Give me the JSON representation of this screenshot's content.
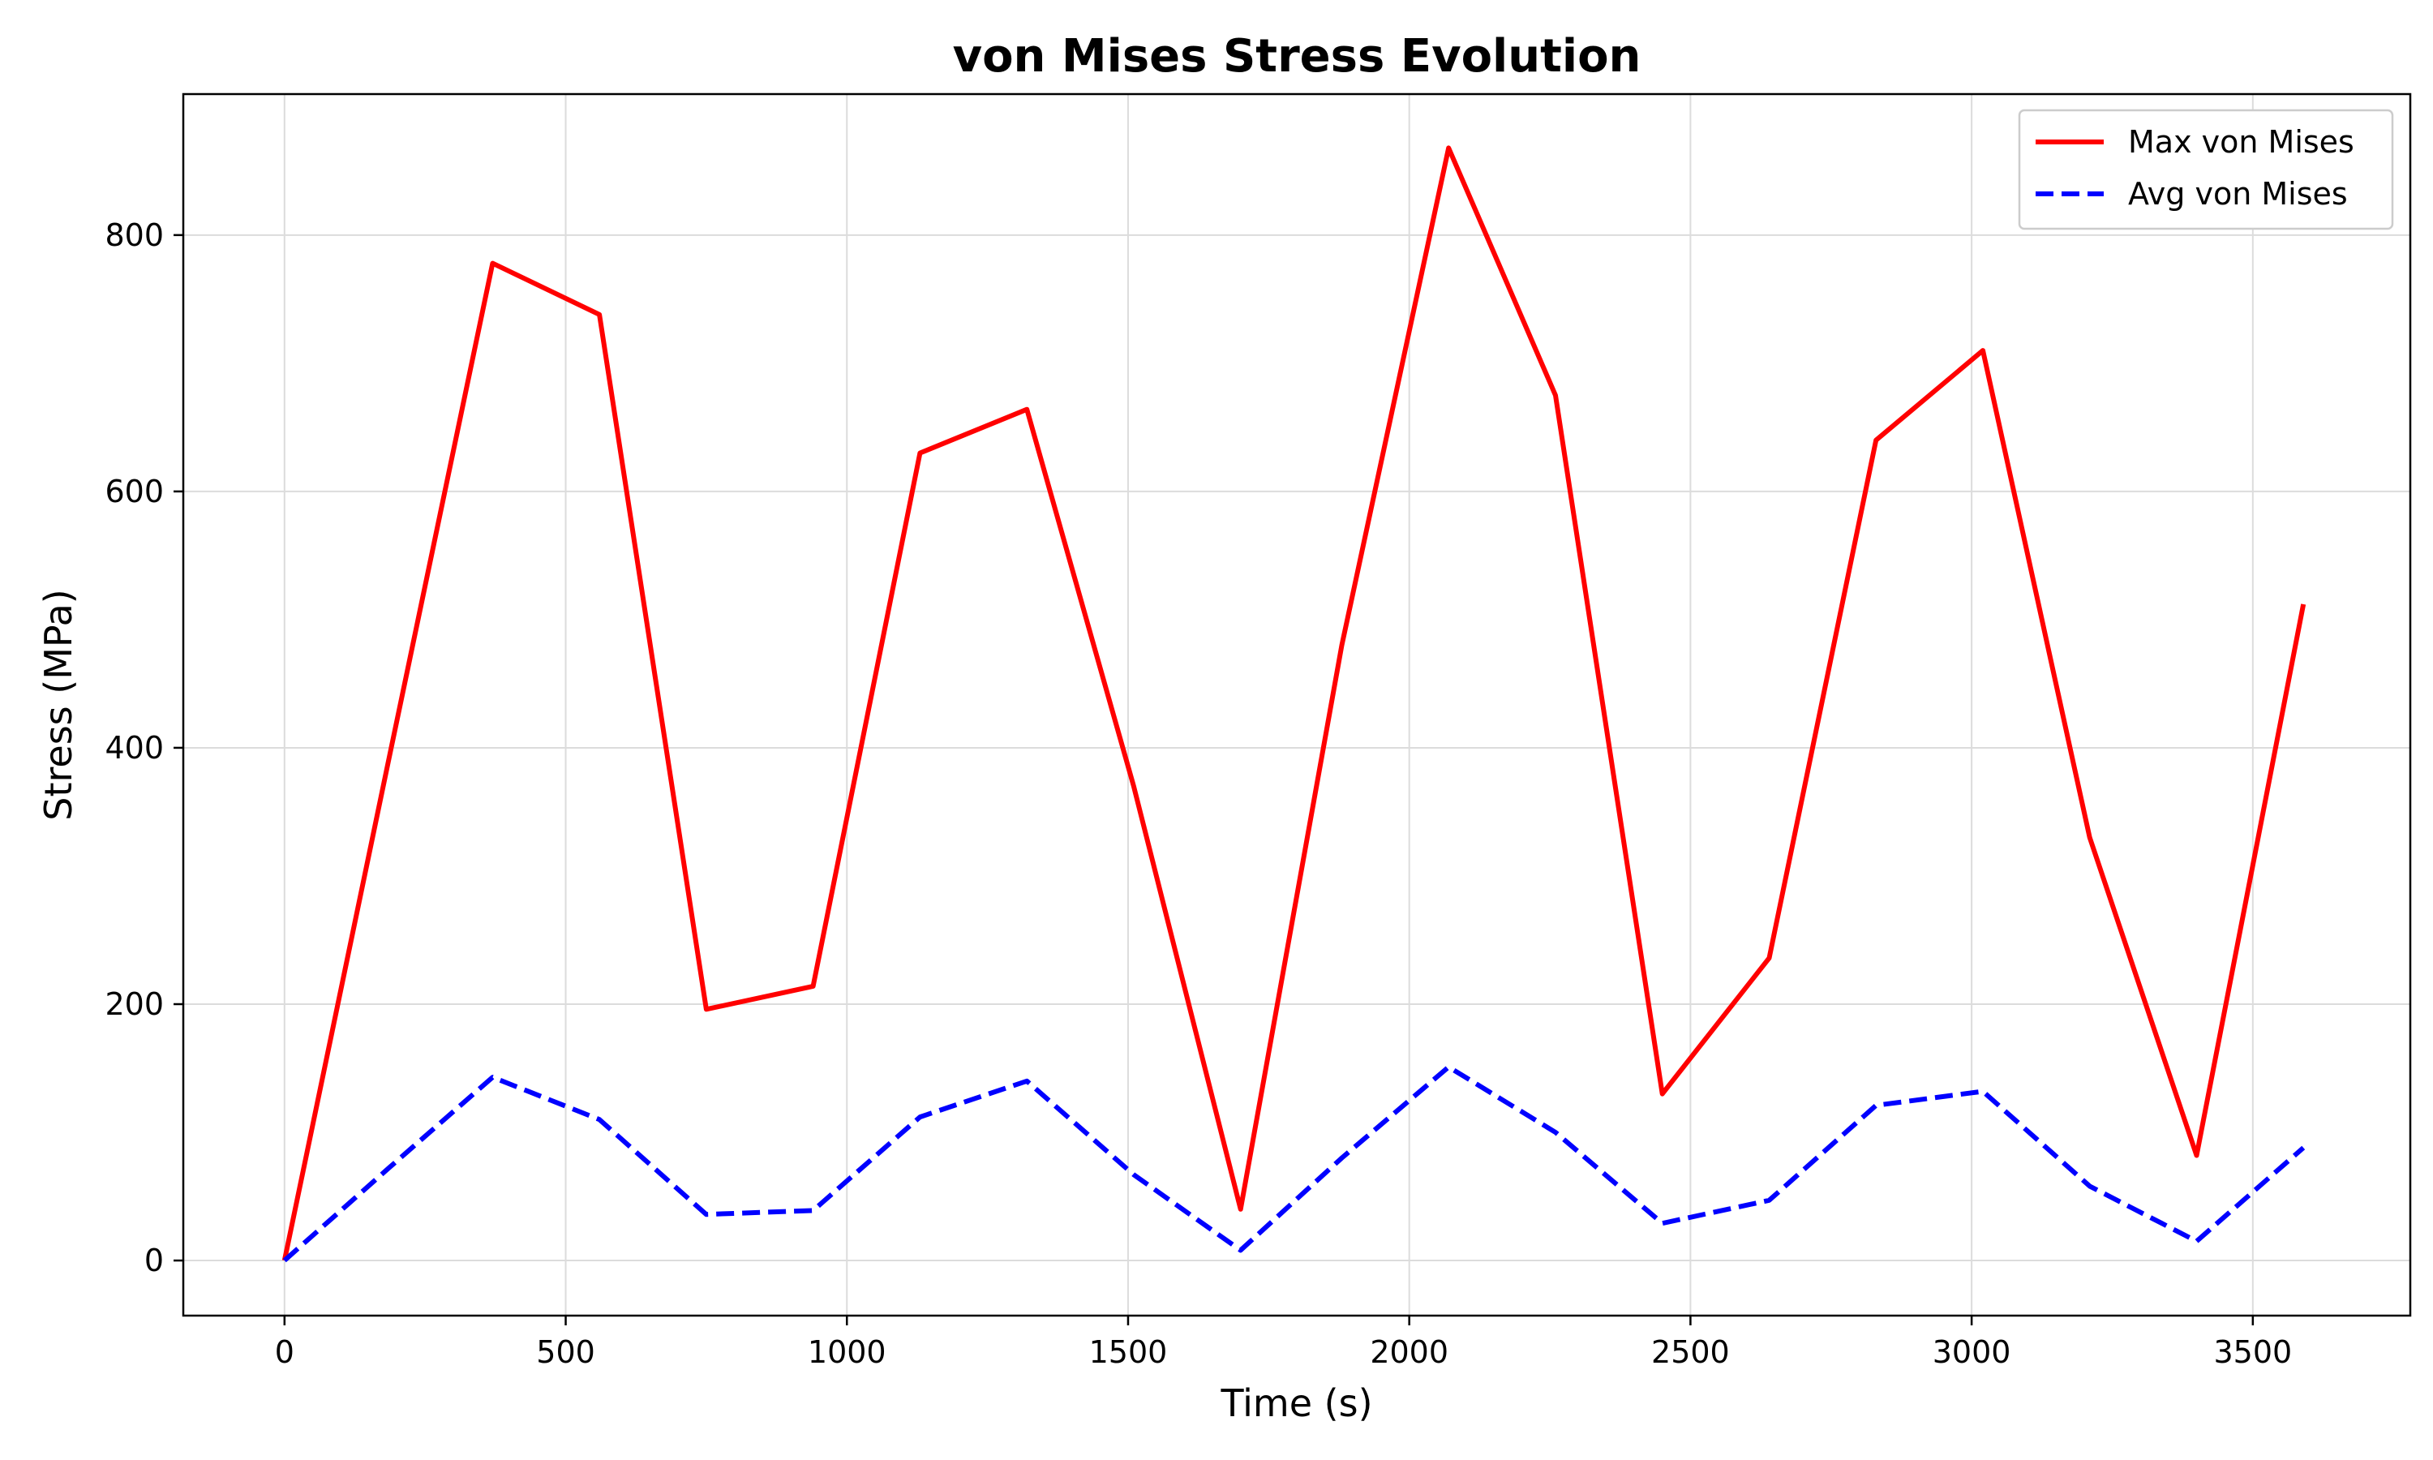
{
  "chart_data": {
    "type": "line",
    "title": "von Mises Stress Evolution",
    "xlabel": "Time (s)",
    "ylabel": "Stress (MPa)",
    "xlim": [
      -180,
      3780
    ],
    "ylim": [
      -43,
      910
    ],
    "xticks": [
      0,
      500,
      1000,
      1500,
      2000,
      2500,
      3000,
      3500
    ],
    "yticks": [
      0,
      200,
      400,
      600,
      800
    ],
    "grid": true,
    "legend_position": "top-right",
    "series": [
      {
        "name": "Max von Mises",
        "color": "#ff0000",
        "style": "solid",
        "x": [
          0,
          185,
          370,
          560,
          750,
          940,
          1130,
          1320,
          1510,
          1700,
          1880,
          2070,
          2260,
          2450,
          2640,
          2830,
          3020,
          3210,
          3400,
          3590
        ],
        "y": [
          0,
          390,
          778,
          738,
          196,
          214,
          630,
          664,
          370,
          40,
          480,
          868,
          675,
          130,
          236,
          640,
          710,
          330,
          82,
          512
        ]
      },
      {
        "name": "Avg von Mises",
        "color": "#0000ff",
        "style": "dashed",
        "x": [
          0,
          185,
          370,
          560,
          750,
          940,
          1130,
          1320,
          1510,
          1700,
          1880,
          2070,
          2260,
          2450,
          2640,
          2830,
          3020,
          3210,
          3400,
          3590
        ],
        "y": [
          0,
          72,
          143,
          110,
          36,
          39,
          112,
          140,
          67,
          8,
          80,
          151,
          100,
          29,
          47,
          121,
          132,
          58,
          15,
          88
        ]
      }
    ]
  }
}
